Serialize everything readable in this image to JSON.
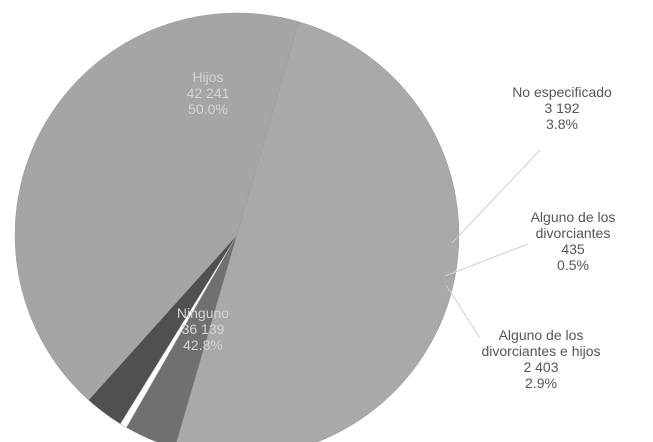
{
  "chart_data": {
    "type": "pie",
    "slices": [
      {
        "label_lines": [
          "Hijos",
          "42 241",
          "50.0%"
        ],
        "value": 42241,
        "percent": 50.0,
        "color": "#a9a9a9"
      },
      {
        "label_lines": [
          "No especificado",
          "3 192",
          "3.8%"
        ],
        "value": 3192,
        "percent": 3.8,
        "color": "#707070"
      },
      {
        "label_lines": [
          "Alguno de los",
          "divorciantes",
          "435",
          "0.5%"
        ],
        "value": 435,
        "percent": 0.5,
        "color": "#ffffff"
      },
      {
        "label_lines": [
          "Alguno de los",
          "divorciantes e hijos",
          "2 403",
          "2.9%"
        ],
        "value": 2403,
        "percent": 2.9,
        "color": "#505050"
      },
      {
        "label_lines": [
          "Ninguno",
          "36 139",
          "42.8%"
        ],
        "value": 36139,
        "percent": 42.8,
        "color": "#a5a5a5"
      }
    ]
  }
}
